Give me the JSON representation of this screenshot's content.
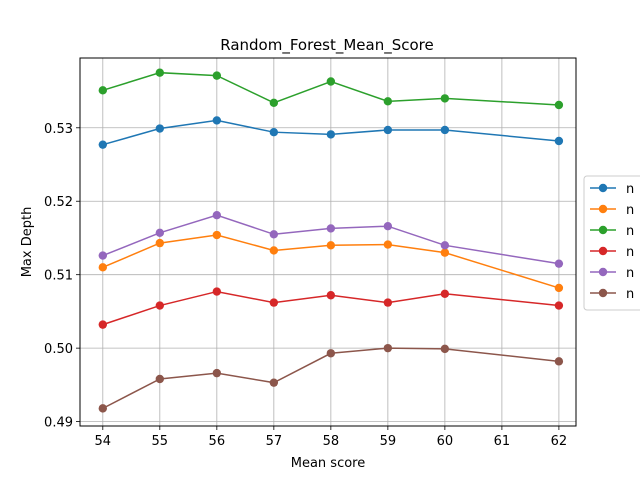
{
  "chart_data": {
    "type": "line",
    "title": "Random_Forest_Mean_Score",
    "xlabel": "Mean score",
    "ylabel": "Max Depth",
    "x": [
      54,
      55,
      56,
      57,
      58,
      59,
      60,
      62
    ],
    "xticks": [
      54,
      55,
      56,
      57,
      58,
      59,
      60,
      61,
      62
    ],
    "yticks": [
      0.49,
      0.5,
      0.51,
      0.52,
      0.53
    ],
    "ytick_labels": [
      "0.49",
      "0.50",
      "0.51",
      "0.52",
      "0.53"
    ],
    "xlim": [
      53.6,
      62.3
    ],
    "ylim": [
      0.4894,
      0.5395
    ],
    "grid": true,
    "legend_position": "center-right",
    "series": [
      {
        "name": "n",
        "color": "#1f77b4",
        "values": [
          0.5277,
          0.5299,
          0.531,
          0.5294,
          0.5291,
          0.5297,
          0.5297,
          0.5282
        ]
      },
      {
        "name": "n",
        "color": "#ff7f0e",
        "values": [
          0.511,
          0.5143,
          0.5154,
          0.5133,
          0.514,
          0.5141,
          0.513,
          0.5082
        ]
      },
      {
        "name": "n",
        "color": "#2ca02c",
        "values": [
          0.5351,
          0.5375,
          0.5371,
          0.5334,
          0.5363,
          0.5336,
          0.534,
          0.5331
        ]
      },
      {
        "name": "n",
        "color": "#d62728",
        "values": [
          0.5032,
          0.5058,
          0.5077,
          0.5062,
          0.5072,
          0.5062,
          0.5074,
          0.5058
        ]
      },
      {
        "name": "n",
        "color": "#9467bd",
        "values": [
          0.5126,
          0.5157,
          0.5181,
          0.5155,
          0.5163,
          0.5166,
          0.514,
          0.5115
        ]
      },
      {
        "name": "n",
        "color": "#8c564b",
        "values": [
          0.4918,
          0.4958,
          0.4966,
          0.4953,
          0.4993,
          0.5,
          0.4999,
          0.4982
        ]
      }
    ]
  }
}
